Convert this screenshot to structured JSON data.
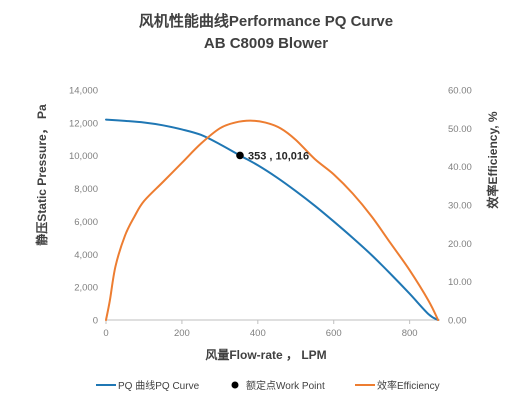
{
  "chart_data": {
    "type": "line",
    "title": "风机性能曲线Performance PQ Curve",
    "subtitle": "AB C8009 Blower",
    "xlabel": "风量Flow-rate ， LPM",
    "ylabel": "静压Static Pressure， Pa",
    "y2label": "效率Efficiency, %",
    "xlim": [
      0,
      880
    ],
    "ylim": [
      0,
      14000
    ],
    "y2lim": [
      0,
      60
    ],
    "x_ticks": [
      "0",
      "200",
      "400",
      "600",
      "800"
    ],
    "y_ticks": [
      "0",
      "2,000",
      "4,000",
      "6,000",
      "8,000",
      "10,000",
      "12,000",
      "14,000"
    ],
    "y2_ticks": [
      "0.00",
      "10.00",
      "20.00",
      "30.00",
      "40.00",
      "50.00",
      "60.00"
    ],
    "grid": false,
    "legend_position": "bottom",
    "series": [
      {
        "name": "PQ 曲线PQ Curve",
        "axis": "left",
        "color": "#1f77b4",
        "x": [
          0,
          50,
          100,
          150,
          200,
          250,
          300,
          353,
          400,
          450,
          500,
          550,
          600,
          650,
          700,
          750,
          800,
          850,
          875
        ],
        "y": [
          12200,
          12120,
          12020,
          11850,
          11600,
          11270,
          10700,
          10016,
          9420,
          8680,
          7850,
          6960,
          6000,
          5000,
          3950,
          2800,
          1600,
          350,
          0
        ]
      },
      {
        "name": "效率Efficiency",
        "axis": "right",
        "color": "#ed7d31",
        "x": [
          0,
          10,
          25,
          50,
          75,
          100,
          150,
          200,
          250,
          300,
          340,
          380,
          420,
          460,
          500,
          550,
          600,
          650,
          700,
          750,
          800,
          850,
          875
        ],
        "y": [
          0,
          5,
          14,
          22,
          27,
          31,
          36,
          41,
          46,
          50,
          51.5,
          52,
          51.5,
          50,
          47,
          42,
          38,
          33,
          27,
          20,
          13,
          5,
          0
        ]
      }
    ],
    "points": [
      {
        "name": "额定点Work Point",
        "axis": "left",
        "color": "#000000",
        "x": 353,
        "y": 10016,
        "label": "353 , 10,016"
      }
    ]
  }
}
